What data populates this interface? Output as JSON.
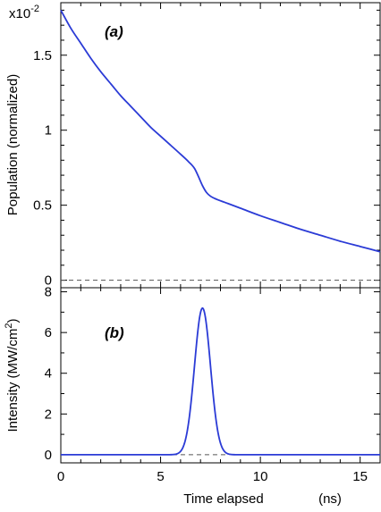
{
  "chart_data": [
    {
      "type": "line",
      "panel_label": "(a)",
      "ylabel": "Population   (normalized)",
      "y_multiplier": "x10",
      "y_multiplier_exp": "-2",
      "xlim": [
        0,
        16
      ],
      "ylim": [
        -0.05,
        1.85
      ],
      "yticks": [
        0,
        0.5,
        1,
        1.5
      ],
      "ytick_labels": [
        "0",
        "0.5",
        "1",
        "1.5"
      ],
      "grid": false,
      "series": [
        {
          "color": "#2b3bd6",
          "x": [
            0,
            0.5,
            1,
            1.5,
            2,
            2.5,
            3,
            3.5,
            4,
            4.5,
            5,
            5.5,
            6,
            6.4,
            6.7,
            6.9,
            7.1,
            7.3,
            7.5,
            7.8,
            8.2,
            9,
            10,
            11,
            12,
            13,
            14,
            15,
            16
          ],
          "y": [
            1.8,
            1.68,
            1.58,
            1.48,
            1.39,
            1.31,
            1.23,
            1.16,
            1.09,
            1.02,
            0.96,
            0.9,
            0.84,
            0.79,
            0.745,
            0.69,
            0.63,
            0.585,
            0.56,
            0.54,
            0.52,
            0.48,
            0.43,
            0.385,
            0.34,
            0.3,
            0.26,
            0.225,
            0.19
          ]
        }
      ],
      "reference_line": {
        "y": 0,
        "style": "dashed"
      }
    },
    {
      "type": "line",
      "panel_label": "(b)",
      "ylabel": "Intensity   (MW/cm",
      "ylabel_sup": "2",
      "ylabel_close": ")",
      "xlabel": "Time elapsed",
      "xunit": "(ns)",
      "xlim": [
        0,
        16
      ],
      "ylim": [
        -0.4,
        8.2
      ],
      "xticks": [
        0,
        5,
        10,
        15
      ],
      "xtick_labels": [
        "0",
        "5",
        "10",
        "15"
      ],
      "yticks": [
        0,
        2,
        4,
        6,
        8
      ],
      "ytick_labels": [
        "0",
        "2",
        "4",
        "6",
        "8"
      ],
      "grid": false,
      "series": [
        {
          "color": "#2b3bd6",
          "shape": "gaussian",
          "peak": 7.2,
          "center": 7.1,
          "sigma": 0.4
        }
      ],
      "reference_line": {
        "y": 0,
        "x_range": [
          5.6,
          8.4
        ],
        "style": "dashed"
      }
    }
  ]
}
